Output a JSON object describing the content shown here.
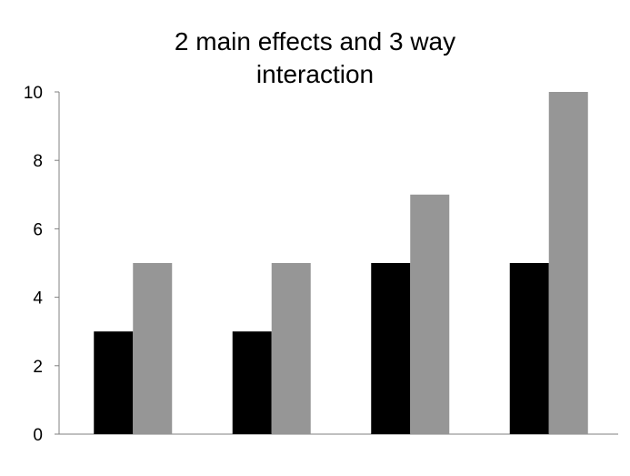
{
  "chart_data": {
    "type": "bar",
    "title": "2 main effects and 3 way interaction",
    "title_lines": [
      "2 main effects and 3 way",
      "interaction"
    ],
    "xlabel": "",
    "ylabel": "",
    "categories": [
      "",
      "",
      "",
      ""
    ],
    "series": [
      {
        "color": "#000000",
        "values": [
          3,
          3,
          5,
          5
        ]
      },
      {
        "color": "#969696",
        "values": [
          5,
          5,
          7,
          10
        ]
      }
    ],
    "ylim": [
      0,
      10
    ],
    "yticks": [
      0,
      2,
      4,
      6,
      8,
      10
    ],
    "grid": false,
    "legend": "none"
  }
}
